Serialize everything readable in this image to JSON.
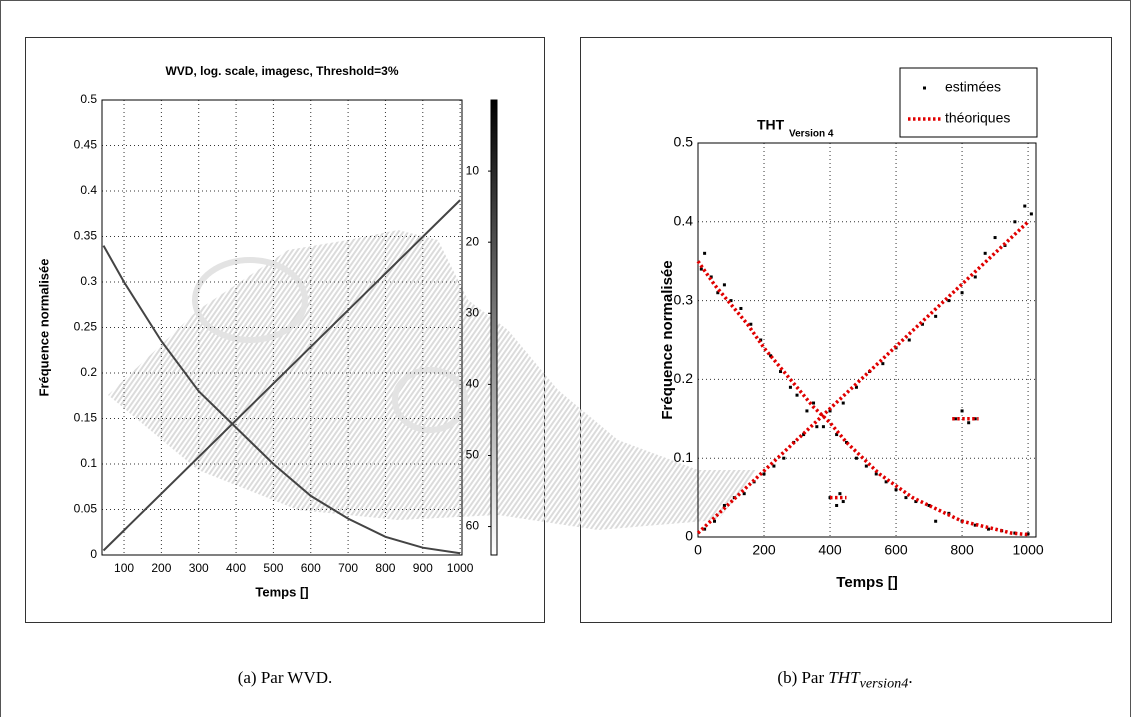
{
  "chart_data": [
    {
      "type": "image",
      "title": "WVD, log. scale, imagesc, Threshold=3%",
      "xlabel": "Temps []",
      "ylabel": "Fréquence normalisée",
      "xlim": [
        41,
        1005
      ],
      "xticks": [
        100,
        200,
        300,
        400,
        500,
        600,
        700,
        800,
        900,
        1000
      ],
      "ylim": [
        0,
        0.5
      ],
      "yticks": [
        0,
        0.05,
        0.1,
        0.15,
        0.2,
        0.25,
        0.3,
        0.35,
        0.4,
        0.45,
        0.5
      ],
      "grid": true,
      "colorbar": {
        "lim": [
          0,
          64
        ],
        "ticks": [
          10,
          20,
          30,
          40,
          50,
          60
        ]
      },
      "series": [
        {
          "color": "#444444",
          "x": [
            45,
            100,
            200,
            300,
            400,
            500,
            600,
            700,
            800,
            900,
            1000
          ],
          "values": [
            0.34,
            0.3,
            0.235,
            0.18,
            0.14,
            0.1,
            0.065,
            0.04,
            0.02,
            0.008,
            0.002
          ]
        },
        {
          "color": "#444444",
          "x": [
            45,
            1000
          ],
          "values": [
            0.005,
            0.39
          ]
        }
      ],
      "caption": "(a) Par WVD."
    },
    {
      "type": "scatter",
      "title": "THT",
      "title_sub": "Version 4",
      "xlabel": "Temps []",
      "ylabel": "Fréquence normalisée",
      "xlim": [
        0,
        1024
      ],
      "xticks": [
        0,
        200,
        400,
        600,
        800,
        1000
      ],
      "ylim": [
        0,
        0.5
      ],
      "yticks": [
        0,
        0.1,
        0.2,
        0.3,
        0.4,
        0.5
      ],
      "grid": true,
      "legend": "upper right",
      "series": [
        {
          "name": "estimées",
          "color": "#000000",
          "marker": "square",
          "x": [
            10,
            20,
            40,
            60,
            80,
            100,
            130,
            160,
            190,
            220,
            250,
            280,
            300,
            330,
            350,
            380,
            420,
            450,
            480,
            510,
            540,
            570,
            600,
            630,
            660,
            700,
            720,
            760,
            800,
            840,
            880,
            920,
            960,
            1000,
            20,
            50,
            80,
            110,
            140,
            170,
            200,
            230,
            260,
            290,
            320,
            360,
            400,
            440,
            480,
            520,
            560,
            600,
            640,
            680,
            720,
            760,
            800,
            840,
            870,
            900,
            930,
            960,
            990,
            1010,
            400,
            420,
            430,
            440,
            780,
            800,
            820,
            840
          ],
          "values": [
            0.34,
            0.36,
            0.33,
            0.31,
            0.32,
            0.3,
            0.29,
            0.27,
            0.25,
            0.23,
            0.21,
            0.19,
            0.18,
            0.16,
            0.17,
            0.14,
            0.13,
            0.12,
            0.1,
            0.09,
            0.08,
            0.07,
            0.06,
            0.05,
            0.045,
            0.04,
            0.02,
            0.03,
            0.02,
            0.015,
            0.01,
            0.008,
            0.005,
            0.004,
            0.01,
            0.02,
            0.04,
            0.05,
            0.055,
            0.07,
            0.08,
            0.09,
            0.1,
            0.12,
            0.13,
            0.14,
            0.16,
            0.17,
            0.19,
            0.21,
            0.22,
            0.24,
            0.25,
            0.27,
            0.28,
            0.3,
            0.31,
            0.33,
            0.36,
            0.38,
            0.37,
            0.4,
            0.42,
            0.41,
            0.05,
            0.04,
            0.055,
            0.045,
            0.15,
            0.16,
            0.145,
            0.15
          ]
        },
        {
          "name": "théoriques",
          "color": "#e00000",
          "line": "dotted",
          "x": [
            0,
            50,
            100,
            150,
            200,
            250,
            300,
            350,
            400,
            450,
            500,
            550,
            600,
            650,
            700,
            750,
            800,
            850,
            900,
            950,
            1000,
            null,
            0,
            1000,
            null,
            400,
            450,
            null,
            770,
            850
          ],
          "values": [
            0.35,
            0.32,
            0.295,
            0.27,
            0.24,
            0.215,
            0.19,
            0.165,
            0.145,
            0.12,
            0.1,
            0.08,
            0.065,
            0.05,
            0.04,
            0.03,
            0.02,
            0.015,
            0.01,
            0.005,
            0.003,
            null,
            0.005,
            0.4,
            null,
            0.05,
            0.05,
            null,
            0.15,
            0.15
          ]
        }
      ],
      "caption": {
        "text": "(b) Par ",
        "math": "THT",
        "sub": "version4",
        "end": "."
      }
    }
  ]
}
